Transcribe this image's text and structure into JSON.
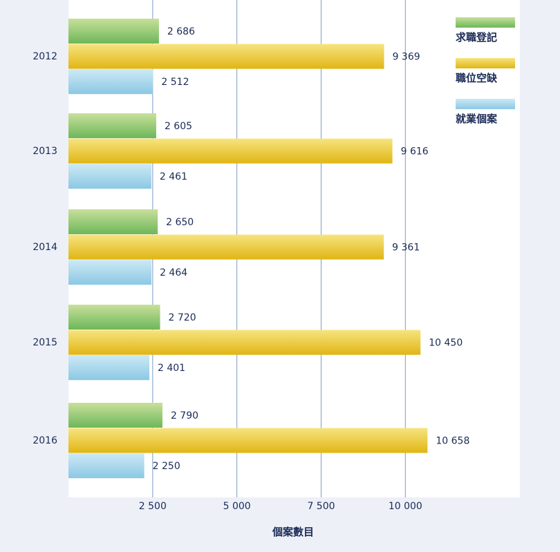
{
  "chart_data": {
    "type": "bar",
    "orientation": "horizontal",
    "categories": [
      "2012",
      "2013",
      "2014",
      "2015",
      "2016"
    ],
    "series": [
      {
        "name": "求職登記",
        "values": [
          2686,
          2605,
          2650,
          2720,
          2790
        ],
        "labels": [
          "2 686",
          "2 605",
          "2 650",
          "2 720",
          "2 790"
        ]
      },
      {
        "name": "職位空缺",
        "values": [
          9369,
          9616,
          9361,
          10450,
          10658
        ],
        "labels": [
          "9 369",
          "9 616",
          "9 361",
          "10 450",
          "10 658"
        ]
      },
      {
        "name": "就業個案",
        "values": [
          2512,
          2461,
          2464,
          2401,
          2250
        ],
        "labels": [
          "2 512",
          "2 461",
          "2 464",
          "2 401",
          "2 250"
        ]
      }
    ],
    "x_ticks": [
      2500,
      5000,
      7500,
      10000
    ],
    "x_tick_labels": [
      "2 500",
      "5 000",
      "7 500",
      "10  000"
    ],
    "xlim": [
      0,
      13400
    ],
    "xlabel": "個案數目",
    "grid": true,
    "legend_position": "top-right",
    "colors": {
      "series": [
        "#6db75a",
        "#e0b614",
        "#8cc8e4"
      ],
      "series_light": [
        "#c8e09a",
        "#f7e480",
        "#cde9f5"
      ],
      "plot_background": "#ffffff",
      "page_background": "#eef0f8",
      "gridline": "#7a9cc4"
    }
  }
}
